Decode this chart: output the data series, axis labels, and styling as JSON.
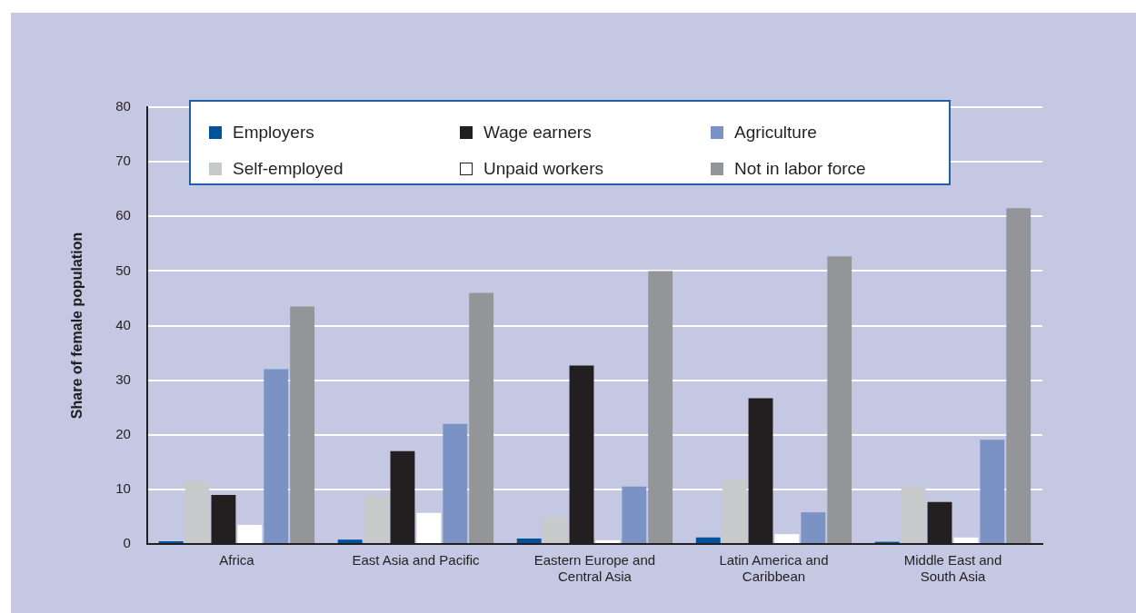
{
  "chart_data": {
    "type": "bar",
    "ylabel": "Share of female population",
    "categories": [
      "Africa",
      "East Asia and Pacific",
      "Eastern Europe and Central Asia",
      "Latin America and Caribbean",
      "Middle East and South Asia"
    ],
    "series": [
      {
        "name": "Employers",
        "color": "#00529b",
        "values": [
          0.5,
          0.8,
          1,
          1.2,
          0.4
        ]
      },
      {
        "name": "Self-employed",
        "color": "#c8c9cb",
        "values": [
          11.5,
          8.7,
          5,
          11.8,
          10.5
        ]
      },
      {
        "name": "Wage earners",
        "color": "#231f20",
        "values": [
          9,
          17,
          32.7,
          26.7,
          7.7
        ]
      },
      {
        "name": "Unpaid workers",
        "color": "#ffffff",
        "values": [
          3.5,
          5.7,
          0.7,
          1.8,
          1.2
        ]
      },
      {
        "name": "Agriculture",
        "color": "#7b93c4",
        "values": [
          32,
          22,
          10.5,
          5.8,
          19.1
        ]
      },
      {
        "name": "Not in labor force",
        "color": "#939598",
        "values": [
          43.5,
          46,
          50,
          52.7,
          61.5
        ]
      }
    ],
    "ylim": [
      0,
      80
    ],
    "yticks": [
      0,
      10,
      20,
      30,
      40,
      50,
      60,
      70,
      80
    ],
    "grid": "y",
    "legend": "top"
  }
}
